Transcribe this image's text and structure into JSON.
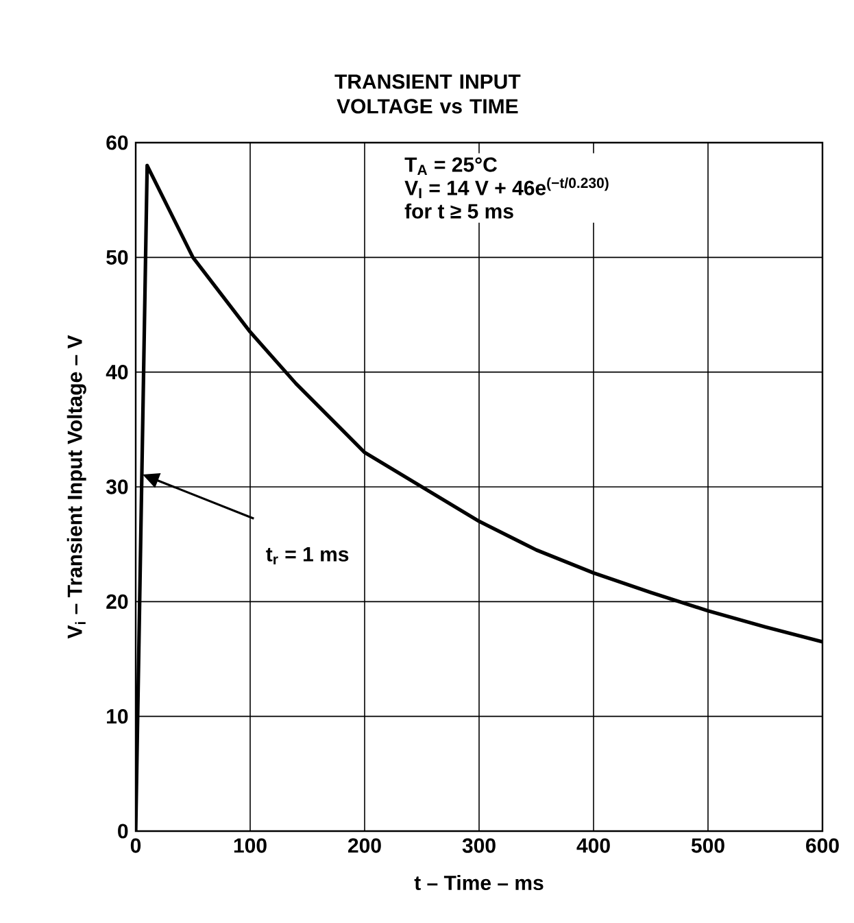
{
  "chart_data": {
    "type": "line",
    "title": "TRANSIENT INPUT VOLTAGE vs TIME",
    "xlabel": "t – Time – ms",
    "ylabel": "V$_{i}$ – Transient Input Voltage – V",
    "x": [
      0,
      10,
      50,
      100,
      140,
      200,
      250,
      300,
      350,
      400,
      450,
      500,
      550,
      600
    ],
    "series": [
      {
        "color": "#000000",
        "values": [
          0,
          58,
          50,
          43.5,
          39,
          33,
          30,
          27,
          24.5,
          22.5,
          20.8,
          19.2,
          17.8,
          16.5
        ]
      }
    ],
    "xlim": [
      0,
      600
    ],
    "xticks": [
      0,
      100,
      200,
      300,
      400,
      500,
      600
    ],
    "ylim": [
      0,
      60
    ],
    "yticks": [
      0,
      10,
      20,
      30,
      40,
      50,
      60
    ],
    "grid": true,
    "marker": "none",
    "line_style": "solid",
    "annotations": [
      "T$_{A}$ = 25°C",
      "V$_{I}$ = 14 V + 46e$^{(−t/0.230)}$",
      "for t ≥ 5 ms",
      "t$_{r}$ = 1 ms"
    ]
  }
}
